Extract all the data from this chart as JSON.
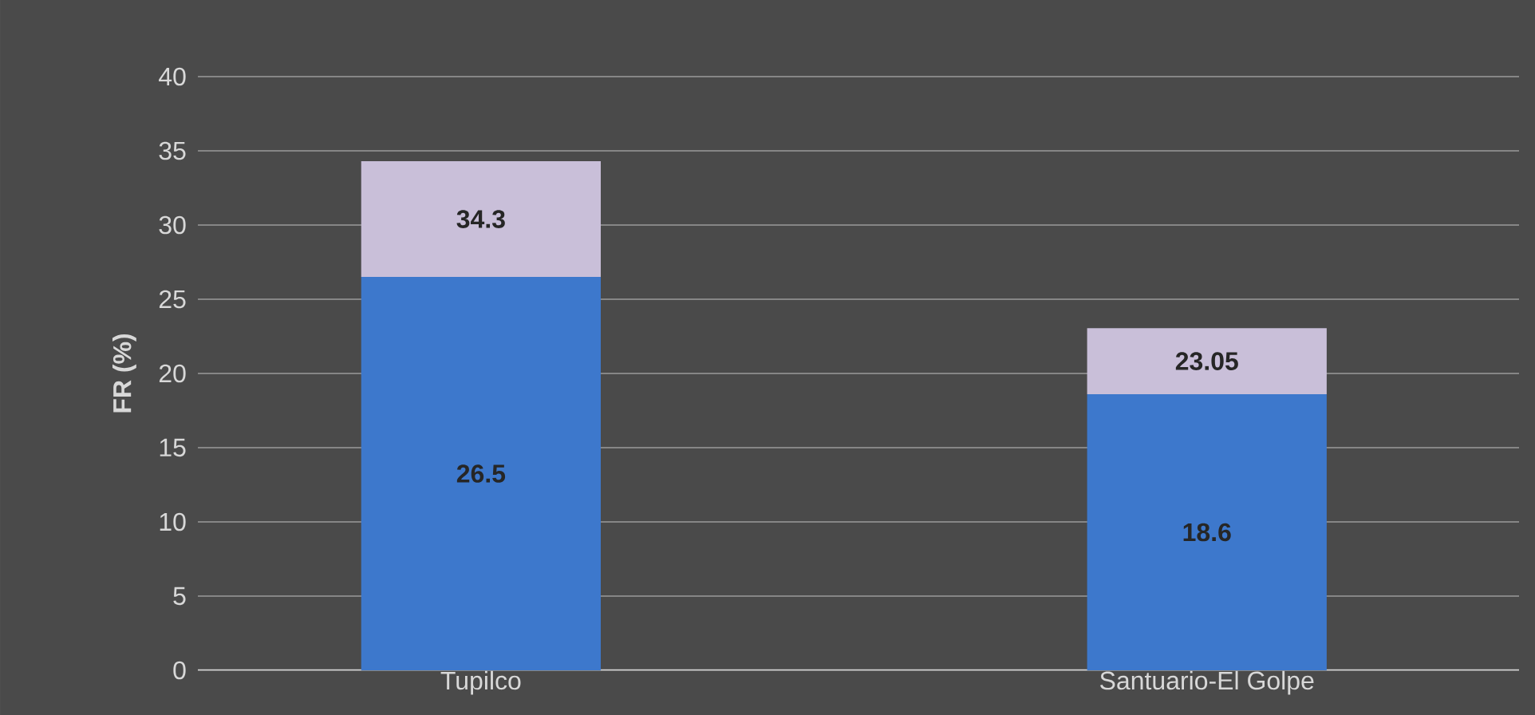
{
  "chart_data": {
    "type": "bar",
    "ylabel": "FR (%)",
    "categories": [
      "Tupilco",
      "Santuario-El Golpe"
    ],
    "stacked": true,
    "series": [
      {
        "color": "#3d78cc",
        "values": [
          26.5,
          18.6
        ],
        "value_labels": [
          "26.5",
          "18.6"
        ]
      },
      {
        "color": "#c9bfd9",
        "values": [
          7.8,
          4.45
        ]
      }
    ],
    "totals": [
      "34.3",
      "23.05"
    ],
    "ylim": [
      0,
      40
    ],
    "yticks": [
      0,
      5,
      10,
      15,
      20,
      25,
      30,
      35,
      40
    ],
    "grid": "y"
  }
}
